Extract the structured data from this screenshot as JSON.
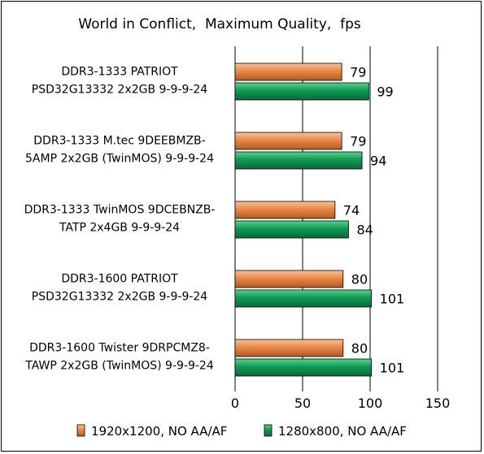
{
  "chart_data": {
    "type": "bar",
    "orientation": "horizontal",
    "title": "World in Conflict,  Maximum Quality,  fps",
    "categories": [
      [
        "DDR3-1333 PATRIOT",
        "PSD32G13332 2x2GB 9-9-9-24"
      ],
      [
        "DDR3-1333 M.tec 9DEEBMZB-",
        "5AMP 2x2GB (TwinMOS) 9-9-9-24"
      ],
      [
        "DDR3-1333 TwinMOS 9DCEBNZB-",
        "TATP  2x4GB 9-9-9-24"
      ],
      [
        "DDR3-1600 PATRIOT",
        "PSD32G13332 2x2GB 9-9-9-24"
      ],
      [
        "DDR3-1600 Twister 9DRPCMZ8-",
        "TAWP 2x2GB (TwinMOS) 9-9-9-24"
      ]
    ],
    "series": [
      {
        "name": "1920x1200, NO AA/AF",
        "color": "#e8894a",
        "values": [
          79,
          79,
          74,
          80,
          80
        ]
      },
      {
        "name": "1280x800, NO AA/AF",
        "color": "#109a55",
        "values": [
          99,
          94,
          84,
          101,
          101
        ]
      }
    ],
    "xlim": [
      0,
      150
    ],
    "xticks": [
      "0",
      "50",
      "100",
      "150"
    ],
    "grid": true,
    "legend_position": "bottom"
  }
}
